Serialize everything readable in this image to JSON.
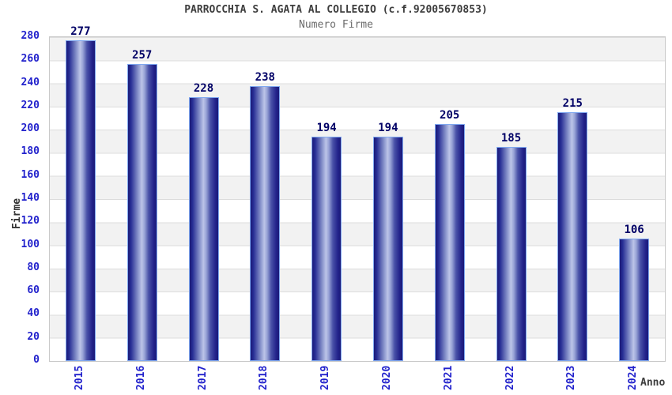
{
  "header": {
    "title": "PARROCCHIA S. AGATA AL COLLEGIO (c.f.92005670853)",
    "subtitle": "Numero Firme"
  },
  "chart_data": {
    "type": "bar",
    "title": "PARROCCHIA S. AGATA AL COLLEGIO (c.f.92005670853)",
    "subtitle": "Numero Firme",
    "categories": [
      "2015",
      "2016",
      "2017",
      "2018",
      "2019",
      "2020",
      "2021",
      "2022",
      "2023",
      "2024"
    ],
    "values": [
      277,
      257,
      228,
      238,
      194,
      194,
      205,
      185,
      215,
      106
    ],
    "xlabel": "Anno",
    "ylabel": "Firme",
    "ylim": [
      0,
      280
    ],
    "ytick_step": 20,
    "yticks": [
      0,
      20,
      40,
      60,
      80,
      100,
      120,
      140,
      160,
      180,
      200,
      220,
      240,
      260,
      280
    ],
    "grid": "horizontal alternating bands",
    "legend": null,
    "colors": {
      "bar_dark": "#1a1a78",
      "bar_light": "#bcc4e8",
      "bar_border": "#7fa8f0",
      "tick_label": "#2222cc",
      "value_label": "#000066",
      "band_gray": "#f2f2f2",
      "band_white": "#ffffff",
      "title_text": "#3d3d3d",
      "subtitle_text": "#6b6b6b"
    }
  }
}
